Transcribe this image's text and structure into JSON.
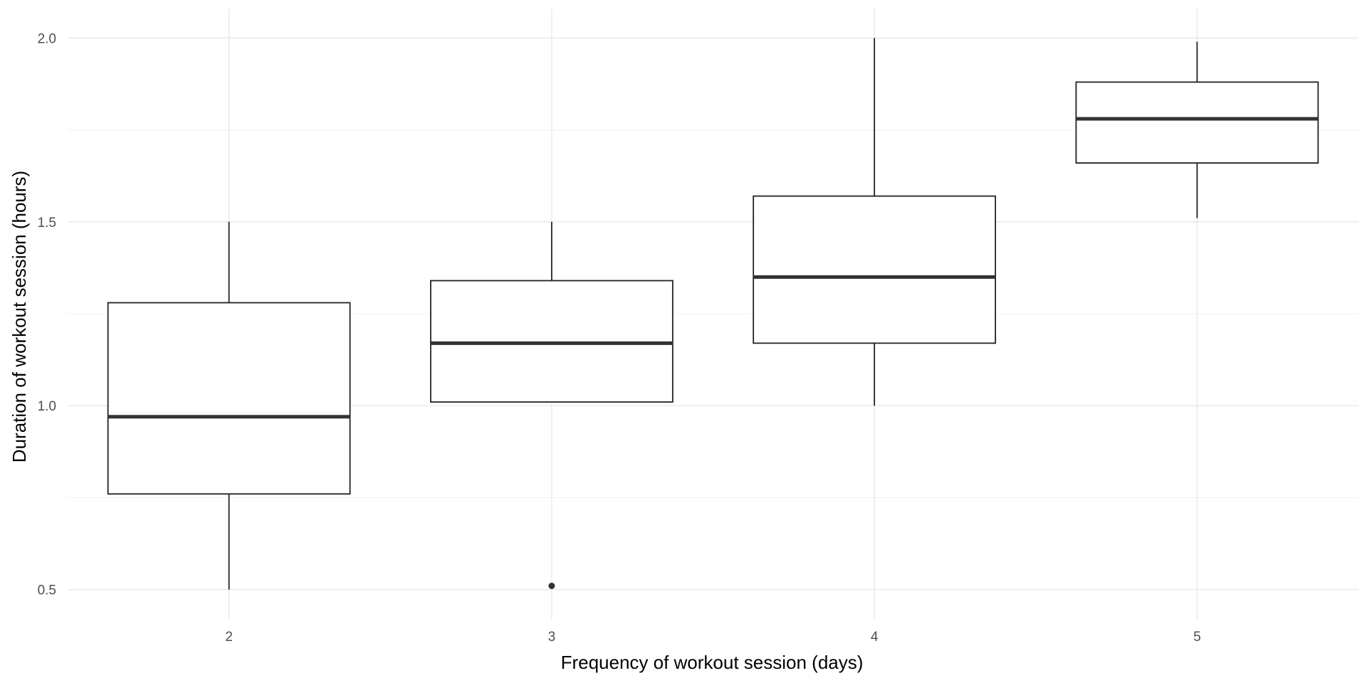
{
  "chart_data": {
    "type": "boxplot",
    "title": "",
    "xlabel": "Frequency of workout session (days)",
    "ylabel": "Duration of workout session (hours)",
    "categories": [
      "2",
      "3",
      "4",
      "5"
    ],
    "ylim": [
      0.42,
      2.08
    ],
    "yticks": [
      0.5,
      1.0,
      1.5,
      2.0
    ],
    "ytick_labels": [
      "0.5",
      "1.0",
      "1.5",
      "2.0"
    ],
    "grid": true,
    "legend": "none",
    "boxes": [
      {
        "category": "2",
        "whisker_low": 0.5,
        "q1": 0.76,
        "median": 0.97,
        "q3": 1.28,
        "whisker_high": 1.5,
        "outliers": []
      },
      {
        "category": "3",
        "whisker_low": 1.01,
        "q1": 1.01,
        "median": 1.17,
        "q3": 1.34,
        "whisker_high": 1.5,
        "outliers": [
          0.51
        ]
      },
      {
        "category": "4",
        "whisker_low": 1.0,
        "q1": 1.17,
        "median": 1.35,
        "q3": 1.57,
        "whisker_high": 2.0,
        "outliers": []
      },
      {
        "category": "5",
        "whisker_low": 1.51,
        "q1": 1.66,
        "median": 1.78,
        "q3": 1.88,
        "whisker_high": 1.99,
        "outliers": []
      }
    ]
  }
}
